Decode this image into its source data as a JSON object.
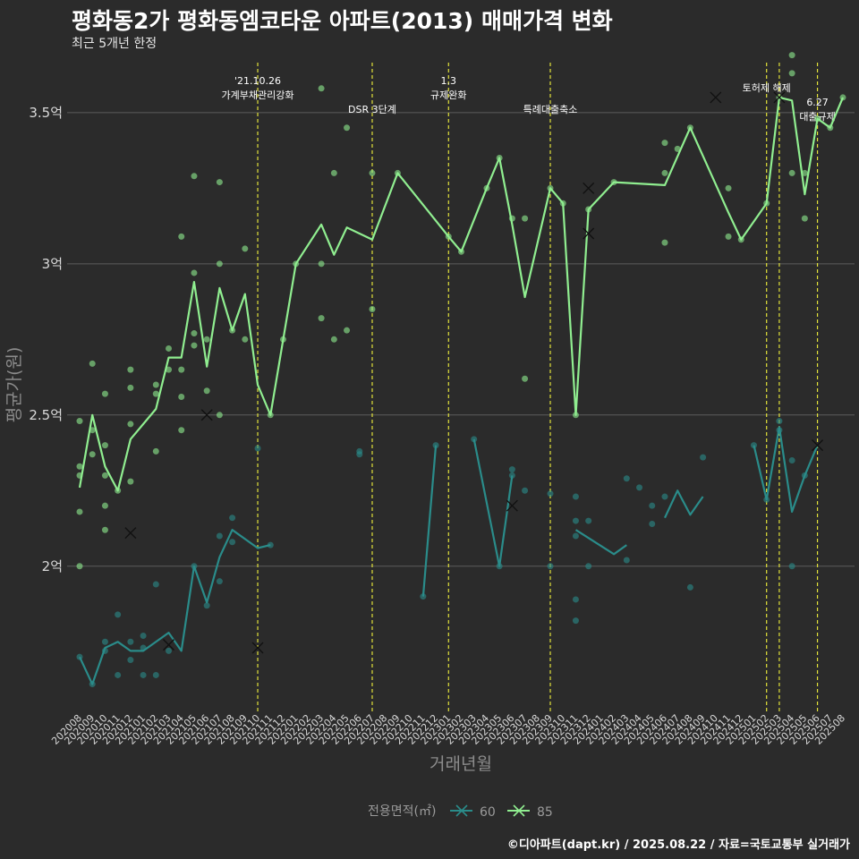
{
  "header": {
    "title": "평화동2가 평화동엠코타운 아파트(2013) 매매가격 변화",
    "subtitle": "최근 5개년 한정"
  },
  "caption": "©디아파트(dapt.kr) / 2025.08.22 / 자료=국토교통부 실거래가",
  "colors": {
    "background": "#2b2b2b",
    "s60": "#2a8c8a",
    "s85": "#90ee90",
    "vline": "#e2e23a",
    "grid": "#5c5c5c"
  },
  "chart_data": {
    "type": "line",
    "xlabel": "거래년월",
    "ylabel": "평균가(원)",
    "ylim": [
      1.52,
      3.68
    ],
    "y_ticks": [
      2.0,
      2.5,
      3.0,
      3.5
    ],
    "y_tick_labels": [
      "2억",
      "2.5억",
      "3억",
      "3.5억"
    ],
    "y_unit": "억원",
    "categories": [
      "202008",
      "202009",
      "202010",
      "202011",
      "202012",
      "202101",
      "202102",
      "202103",
      "202104",
      "202105",
      "202106",
      "202107",
      "202108",
      "202109",
      "202110",
      "202111",
      "202112",
      "202201",
      "202202",
      "202203",
      "202204",
      "202205",
      "202206",
      "202207",
      "202208",
      "202209",
      "202210",
      "202211",
      "202212",
      "202301",
      "202302",
      "202303",
      "202304",
      "202305",
      "202306",
      "202307",
      "202308",
      "202309",
      "202310",
      "202311",
      "202312",
      "202401",
      "202402",
      "202403",
      "202404",
      "202405",
      "202406",
      "202407",
      "202408",
      "202409",
      "202410",
      "202411",
      "202412",
      "202501",
      "202502",
      "202503",
      "202504",
      "202505",
      "202506",
      "202507",
      "202508"
    ],
    "series": [
      {
        "name": "60",
        "color": "#2a8c8a",
        "line": [
          [
            0,
            1.7
          ],
          [
            1,
            1.61
          ],
          [
            2,
            1.73
          ],
          [
            3,
            1.75
          ],
          [
            4,
            1.72
          ],
          [
            5,
            1.72
          ],
          [
            7,
            1.78
          ],
          [
            8,
            1.72
          ],
          [
            9,
            2.0
          ],
          [
            10,
            1.88
          ],
          [
            11,
            2.03
          ],
          [
            12,
            2.12
          ],
          [
            14,
            2.06
          ],
          [
            15,
            2.07
          ],
          null,
          [
            27,
            1.9
          ],
          [
            28,
            2.4
          ],
          null,
          [
            31,
            2.42
          ],
          [
            33,
            2.0
          ],
          [
            34,
            2.3
          ],
          null,
          [
            39,
            2.12
          ],
          [
            42,
            2.04
          ],
          [
            43,
            2.07
          ],
          null,
          [
            46,
            2.16
          ],
          [
            47,
            2.25
          ],
          [
            48,
            2.17
          ],
          [
            49,
            2.23
          ],
          null,
          [
            53,
            2.4
          ],
          [
            54,
            2.22
          ],
          [
            55,
            2.46
          ],
          [
            56,
            2.18
          ],
          [
            57,
            2.3
          ],
          [
            58,
            2.4
          ]
        ],
        "points": [
          [
            0,
            1.7
          ],
          [
            1,
            1.61
          ],
          [
            2,
            1.75
          ],
          [
            2,
            1.72
          ],
          [
            3,
            1.84
          ],
          [
            3,
            1.64
          ],
          [
            4,
            1.75
          ],
          [
            4,
            1.69
          ],
          [
            5,
            1.77
          ],
          [
            5,
            1.73
          ],
          [
            5,
            1.64
          ],
          [
            6,
            1.94
          ],
          [
            6,
            1.64
          ],
          [
            7,
            1.72
          ],
          [
            9,
            2.0
          ],
          [
            10,
            1.87
          ],
          [
            11,
            2.1
          ],
          [
            11,
            1.95
          ],
          [
            12,
            2.16
          ],
          [
            12,
            2.08
          ],
          [
            14,
            2.39
          ],
          [
            15,
            2.07
          ],
          [
            22,
            2.37
          ],
          [
            22,
            2.38
          ],
          [
            27,
            1.9
          ],
          [
            28,
            2.4
          ],
          [
            31,
            2.42
          ],
          [
            33,
            2.0
          ],
          [
            34,
            2.3
          ],
          [
            34,
            2.32
          ],
          [
            35,
            2.25
          ],
          [
            37,
            2.0
          ],
          [
            37,
            2.24
          ],
          [
            39,
            2.23
          ],
          [
            39,
            2.15
          ],
          [
            39,
            2.1
          ],
          [
            39,
            1.89
          ],
          [
            39,
            1.82
          ],
          [
            40,
            2.15
          ],
          [
            40,
            2.0
          ],
          [
            43,
            2.29
          ],
          [
            43,
            2.02
          ],
          [
            44,
            2.26
          ],
          [
            45,
            2.14
          ],
          [
            45,
            2.2
          ],
          [
            46,
            2.23
          ],
          [
            48,
            1.93
          ],
          [
            49,
            2.36
          ],
          [
            53,
            2.4
          ],
          [
            54,
            2.22
          ],
          [
            55,
            2.48
          ],
          [
            55,
            2.45
          ],
          [
            56,
            2.35
          ],
          [
            56,
            2.0
          ],
          [
            57,
            2.3
          ]
        ],
        "cancelled": [
          [
            7,
            1.74
          ],
          [
            14,
            1.73
          ],
          [
            34,
            2.2
          ],
          [
            58,
            2.4
          ]
        ]
      },
      {
        "name": "85",
        "color": "#90ee90",
        "line": [
          [
            0,
            2.26
          ],
          [
            1,
            2.5
          ],
          [
            2,
            2.33
          ],
          [
            3,
            2.25
          ],
          [
            4,
            2.42
          ],
          [
            6,
            2.52
          ],
          [
            7,
            2.69
          ],
          [
            8,
            2.69
          ],
          [
            9,
            2.94
          ],
          [
            10,
            2.66
          ],
          [
            11,
            2.92
          ],
          [
            12,
            2.78
          ],
          [
            13,
            2.9
          ],
          [
            14,
            2.6
          ],
          [
            15,
            2.5
          ],
          [
            16,
            2.75
          ],
          [
            17,
            3.0
          ],
          [
            19,
            3.13
          ],
          [
            20,
            3.03
          ],
          [
            21,
            3.12
          ],
          [
            23,
            3.08
          ],
          [
            25,
            3.3
          ],
          [
            29,
            3.09
          ],
          [
            30,
            3.04
          ],
          [
            32,
            3.25
          ],
          [
            33,
            3.35
          ],
          [
            34,
            3.13
          ],
          [
            35,
            2.89
          ],
          [
            37,
            3.25
          ],
          [
            38,
            3.2
          ],
          [
            39,
            2.5
          ],
          [
            40,
            3.18
          ],
          [
            42,
            3.27
          ],
          [
            46,
            3.26
          ],
          [
            48,
            3.45
          ],
          [
            51,
            3.17
          ],
          [
            52,
            3.08
          ],
          [
            54,
            3.2
          ],
          [
            55,
            3.55
          ],
          [
            56,
            3.54
          ],
          [
            57,
            3.23
          ],
          [
            58,
            3.48
          ],
          [
            59,
            3.45
          ],
          [
            60,
            3.55
          ]
        ],
        "points": [
          [
            0,
            2.48
          ],
          [
            0,
            2.33
          ],
          [
            0,
            2.3
          ],
          [
            0,
            2.18
          ],
          [
            0,
            2.0
          ],
          [
            1,
            2.67
          ],
          [
            1,
            2.45
          ],
          [
            1,
            2.37
          ],
          [
            2,
            2.57
          ],
          [
            2,
            2.4
          ],
          [
            2,
            2.3
          ],
          [
            2,
            2.2
          ],
          [
            2,
            2.12
          ],
          [
            3,
            2.25
          ],
          [
            4,
            2.65
          ],
          [
            4,
            2.59
          ],
          [
            4,
            2.47
          ],
          [
            4,
            2.28
          ],
          [
            6,
            2.6
          ],
          [
            6,
            2.57
          ],
          [
            6,
            2.38
          ],
          [
            7,
            2.72
          ],
          [
            7,
            2.65
          ],
          [
            8,
            3.09
          ],
          [
            8,
            2.65
          ],
          [
            8,
            2.56
          ],
          [
            8,
            2.45
          ],
          [
            9,
            3.29
          ],
          [
            9,
            2.97
          ],
          [
            9,
            2.77
          ],
          [
            9,
            2.73
          ],
          [
            10,
            2.75
          ],
          [
            10,
            2.58
          ],
          [
            11,
            3.27
          ],
          [
            11,
            3.0
          ],
          [
            11,
            2.5
          ],
          [
            12,
            2.78
          ],
          [
            13,
            3.05
          ],
          [
            13,
            2.75
          ],
          [
            15,
            2.5
          ],
          [
            16,
            2.75
          ],
          [
            17,
            3.0
          ],
          [
            19,
            3.58
          ],
          [
            19,
            3.0
          ],
          [
            19,
            2.82
          ],
          [
            20,
            3.3
          ],
          [
            20,
            2.75
          ],
          [
            21,
            3.45
          ],
          [
            21,
            2.78
          ],
          [
            23,
            3.3
          ],
          [
            23,
            2.85
          ],
          [
            25,
            3.3
          ],
          [
            29,
            3.09
          ],
          [
            30,
            3.04
          ],
          [
            32,
            3.25
          ],
          [
            33,
            3.35
          ],
          [
            34,
            3.15
          ],
          [
            35,
            3.15
          ],
          [
            35,
            2.62
          ],
          [
            37,
            3.25
          ],
          [
            38,
            3.2
          ],
          [
            39,
            2.5
          ],
          [
            40,
            3.18
          ],
          [
            42,
            3.27
          ],
          [
            46,
            3.4
          ],
          [
            46,
            3.3
          ],
          [
            46,
            3.07
          ],
          [
            47,
            3.38
          ],
          [
            48,
            3.45
          ],
          [
            51,
            3.25
          ],
          [
            51,
            3.09
          ],
          [
            52,
            3.08
          ],
          [
            54,
            3.2
          ],
          [
            55,
            3.55
          ],
          [
            56,
            3.69
          ],
          [
            56,
            3.63
          ],
          [
            56,
            3.3
          ],
          [
            57,
            3.3
          ],
          [
            57,
            3.15
          ],
          [
            58,
            3.48
          ],
          [
            59,
            3.45
          ],
          [
            60,
            3.55
          ]
        ],
        "cancelled": [
          [
            4,
            2.11
          ],
          [
            10,
            2.5
          ],
          [
            40,
            3.25
          ],
          [
            40,
            3.1
          ],
          [
            50,
            3.55
          ],
          [
            55,
            3.55
          ]
        ]
      }
    ],
    "events": [
      {
        "index": 14,
        "label_lines": [
          "'21.10.26",
          "가계부채관리강화"
        ]
      },
      {
        "index": 23,
        "label_lines": [
          "DSR 3단계"
        ]
      },
      {
        "index": 29,
        "label_lines": [
          "1.3",
          "규제완화"
        ]
      },
      {
        "index": 37,
        "label_lines": [
          "특례대출축소"
        ]
      },
      {
        "index": 54,
        "label_lines": [
          "토허제 해제"
        ]
      },
      {
        "index": 55,
        "label_lines": []
      },
      {
        "index": 58,
        "label_lines": [
          "6.27",
          "대출규제"
        ]
      }
    ],
    "legend": {
      "title": "전용면적(㎡)",
      "position": "bottom"
    }
  }
}
